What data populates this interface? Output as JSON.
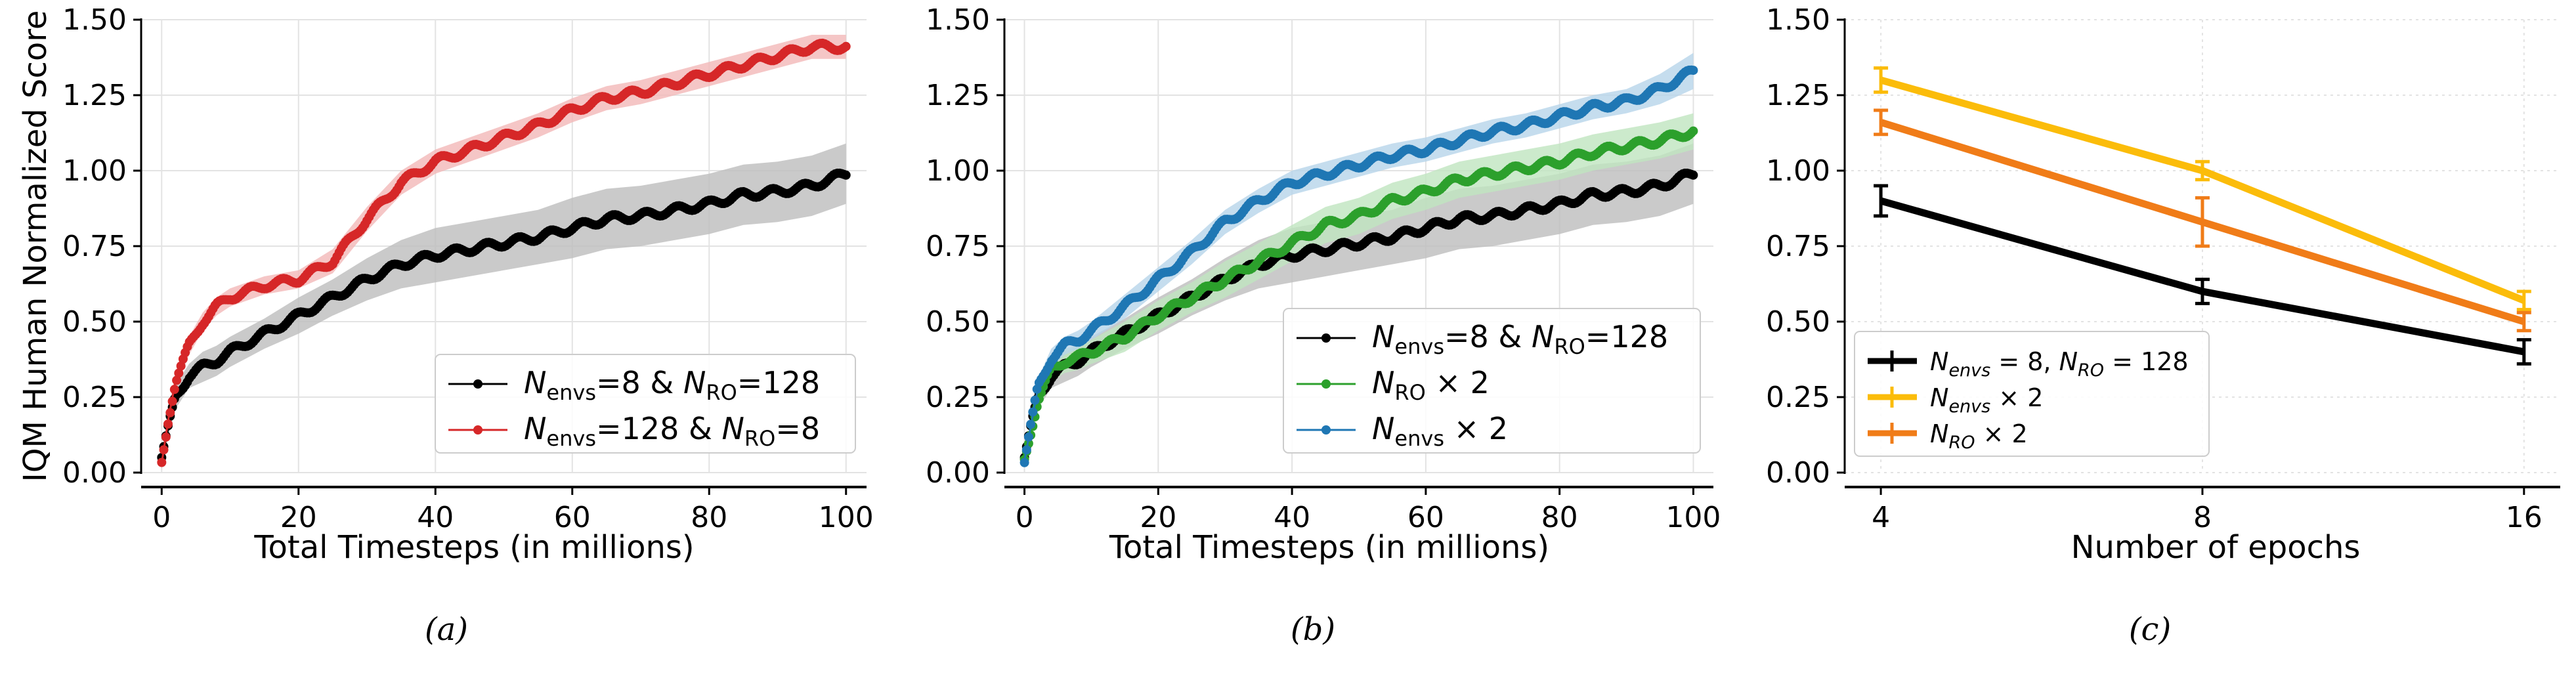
{
  "y_axis_label": "IQM Human Normalized Score",
  "chart_data": [
    {
      "type": "line",
      "panel": "a",
      "caption": "(a)",
      "xlabel": "Total Timesteps (in millions)",
      "ylabel": "IQM Human Normalized Score",
      "xlim": [
        -3,
        103
      ],
      "ylim": [
        0,
        1.5
      ],
      "xticks": [
        0,
        20,
        40,
        60,
        80,
        100
      ],
      "xtick_labels": [
        "0",
        "20",
        "40",
        "60",
        "80",
        "100"
      ],
      "yticks": [
        0,
        0.25,
        0.5,
        0.75,
        1.0,
        1.25,
        1.5
      ],
      "ytick_labels": [
        "0.00",
        "0.25",
        "0.50",
        "0.75",
        "1.00",
        "1.25",
        "1.50"
      ],
      "grid": true,
      "legend_position": "lower-right",
      "series": [
        {
          "name": "black",
          "label_parts": {
            "n1": "N",
            "s1": "envs",
            "e1": "=8 & ",
            "n2": "N",
            "s2": "RO",
            "e2": "=128"
          },
          "color": "#000000",
          "band_color": "#bdbdbd",
          "x": [
            0,
            1,
            2,
            4,
            6,
            8,
            10,
            15,
            20,
            25,
            30,
            35,
            40,
            45,
            50,
            55,
            60,
            65,
            70,
            75,
            80,
            85,
            90,
            95,
            100
          ],
          "y": [
            0.05,
            0.15,
            0.25,
            0.32,
            0.35,
            0.37,
            0.4,
            0.46,
            0.52,
            0.58,
            0.64,
            0.69,
            0.72,
            0.74,
            0.76,
            0.78,
            0.81,
            0.84,
            0.85,
            0.87,
            0.89,
            0.92,
            0.93,
            0.95,
            0.99
          ],
          "band": [
            0.02,
            0.03,
            0.04,
            0.04,
            0.05,
            0.05,
            0.05,
            0.05,
            0.06,
            0.06,
            0.07,
            0.08,
            0.09,
            0.09,
            0.09,
            0.09,
            0.1,
            0.1,
            0.1,
            0.1,
            0.1,
            0.1,
            0.1,
            0.1,
            0.1
          ]
        },
        {
          "name": "red",
          "label_parts": {
            "n1": "N",
            "s1": "envs",
            "e1": "=128 & ",
            "n2": "N",
            "s2": "RO",
            "e2": "=8"
          },
          "color": "#d62728",
          "band_color": "#f2b8b8",
          "x": [
            0,
            1,
            2,
            4,
            6,
            8,
            10,
            15,
            20,
            25,
            30,
            35,
            40,
            45,
            50,
            55,
            60,
            65,
            70,
            75,
            80,
            85,
            90,
            95,
            100
          ],
          "y": [
            0.03,
            0.18,
            0.3,
            0.42,
            0.5,
            0.55,
            0.58,
            0.62,
            0.64,
            0.7,
            0.84,
            0.96,
            1.03,
            1.07,
            1.11,
            1.15,
            1.2,
            1.24,
            1.26,
            1.29,
            1.32,
            1.35,
            1.38,
            1.41,
            1.41
          ],
          "band": [
            0.02,
            0.03,
            0.03,
            0.03,
            0.03,
            0.03,
            0.03,
            0.03,
            0.03,
            0.04,
            0.04,
            0.04,
            0.04,
            0.04,
            0.04,
            0.04,
            0.04,
            0.04,
            0.04,
            0.04,
            0.04,
            0.04,
            0.04,
            0.04,
            0.04
          ]
        }
      ]
    },
    {
      "type": "line",
      "panel": "b",
      "caption": "(b)",
      "xlabel": "Total Timesteps (in millions)",
      "xlim": [
        -3,
        103
      ],
      "ylim": [
        0,
        1.5
      ],
      "xticks": [
        0,
        20,
        40,
        60,
        80,
        100
      ],
      "xtick_labels": [
        "0",
        "20",
        "40",
        "60",
        "80",
        "100"
      ],
      "yticks": [
        0,
        0.25,
        0.5,
        0.75,
        1.0,
        1.25,
        1.5
      ],
      "ytick_labels": [
        "0.00",
        "0.25",
        "0.50",
        "0.75",
        "1.00",
        "1.25",
        "1.50"
      ],
      "grid": true,
      "legend_position": "lower-right",
      "series": [
        {
          "name": "black",
          "label_parts": {
            "n1": "N",
            "s1": "envs",
            "e1": "=8 & ",
            "n2": "N",
            "s2": "RO",
            "e2": "=128"
          },
          "color": "#000000",
          "band_color": "#bdbdbd",
          "x": [
            0,
            1,
            2,
            4,
            6,
            8,
            10,
            15,
            20,
            25,
            30,
            35,
            40,
            45,
            50,
            55,
            60,
            65,
            70,
            75,
            80,
            85,
            90,
            95,
            100
          ],
          "y": [
            0.05,
            0.15,
            0.25,
            0.32,
            0.35,
            0.37,
            0.4,
            0.46,
            0.52,
            0.58,
            0.64,
            0.69,
            0.72,
            0.74,
            0.76,
            0.78,
            0.81,
            0.84,
            0.85,
            0.87,
            0.89,
            0.92,
            0.93,
            0.95,
            0.99
          ],
          "band": [
            0.02,
            0.03,
            0.04,
            0.04,
            0.05,
            0.05,
            0.05,
            0.05,
            0.06,
            0.06,
            0.07,
            0.08,
            0.09,
            0.09,
            0.09,
            0.09,
            0.1,
            0.1,
            0.1,
            0.1,
            0.1,
            0.1,
            0.1,
            0.1,
            0.1
          ]
        },
        {
          "name": "green",
          "label_parts": {
            "n1": "N",
            "s1": "RO",
            "e1": " × 2"
          },
          "color": "#2ca02c",
          "band_color": "#bfe5bf",
          "x": [
            0,
            1,
            2,
            4,
            6,
            8,
            10,
            15,
            20,
            25,
            30,
            35,
            40,
            45,
            50,
            55,
            60,
            65,
            70,
            75,
            80,
            85,
            90,
            95,
            100
          ],
          "y": [
            0.04,
            0.14,
            0.24,
            0.34,
            0.37,
            0.38,
            0.4,
            0.45,
            0.52,
            0.58,
            0.64,
            0.7,
            0.76,
            0.82,
            0.85,
            0.9,
            0.93,
            0.97,
            0.99,
            1.01,
            1.03,
            1.06,
            1.08,
            1.1,
            1.13
          ],
          "band": [
            0.02,
            0.03,
            0.04,
            0.04,
            0.04,
            0.04,
            0.04,
            0.05,
            0.05,
            0.05,
            0.06,
            0.06,
            0.06,
            0.06,
            0.06,
            0.06,
            0.06,
            0.06,
            0.06,
            0.06,
            0.06,
            0.06,
            0.06,
            0.06,
            0.06
          ]
        },
        {
          "name": "blue",
          "label_parts": {
            "n1": "N",
            "s1": "envs",
            "e1": " × 2"
          },
          "color": "#1f77b4",
          "band_color": "#b7d4ea",
          "x": [
            0,
            1,
            2,
            4,
            6,
            8,
            10,
            15,
            20,
            25,
            30,
            35,
            40,
            45,
            50,
            55,
            60,
            65,
            70,
            75,
            80,
            85,
            90,
            95,
            100
          ],
          "y": [
            0.04,
            0.16,
            0.28,
            0.38,
            0.42,
            0.44,
            0.47,
            0.55,
            0.64,
            0.73,
            0.83,
            0.9,
            0.96,
            0.99,
            1.02,
            1.05,
            1.07,
            1.1,
            1.13,
            1.15,
            1.18,
            1.21,
            1.23,
            1.27,
            1.33
          ],
          "band": [
            0.02,
            0.03,
            0.03,
            0.03,
            0.03,
            0.03,
            0.03,
            0.04,
            0.04,
            0.04,
            0.04,
            0.04,
            0.04,
            0.04,
            0.04,
            0.04,
            0.04,
            0.04,
            0.04,
            0.04,
            0.04,
            0.04,
            0.04,
            0.05,
            0.06
          ]
        }
      ]
    },
    {
      "type": "line",
      "panel": "c",
      "caption": "(c)",
      "xlabel": "Number of epochs",
      "x_scale": "log2",
      "xlim": [
        3.7,
        17.3
      ],
      "ylim": [
        0,
        1.5
      ],
      "xticks": [
        4,
        8,
        16
      ],
      "xtick_labels": [
        "4",
        "8",
        "16"
      ],
      "yticks": [
        0,
        0.25,
        0.5,
        0.75,
        1.0,
        1.25,
        1.5
      ],
      "ytick_labels": [
        "0.00",
        "0.25",
        "0.50",
        "0.75",
        "1.00",
        "1.25",
        "1.50"
      ],
      "grid": true,
      "legend_position": "lower-left",
      "series": [
        {
          "name": "black",
          "label_parts": {
            "n1": "N",
            "s1": "envs",
            "e1": " = 8, ",
            "n2": "N",
            "s2": "RO",
            "e2": " = 128"
          },
          "color": "#000000",
          "x": [
            4,
            8,
            16
          ],
          "y": [
            0.9,
            0.6,
            0.4
          ],
          "err": [
            0.05,
            0.04,
            0.04
          ]
        },
        {
          "name": "yellow",
          "label_parts": {
            "n1": "N",
            "s1": "envs",
            "e1": " × 2"
          },
          "color": "#fbbc0a",
          "x": [
            4,
            8,
            16
          ],
          "y": [
            1.3,
            1.0,
            0.57
          ],
          "err": [
            0.04,
            0.03,
            0.03
          ]
        },
        {
          "name": "orange",
          "label_parts": {
            "n1": "N",
            "s1": "RO",
            "e1": " × 2"
          },
          "color": "#f07c18",
          "x": [
            4,
            8,
            16
          ],
          "y": [
            1.16,
            0.83,
            0.5
          ],
          "err": [
            0.04,
            0.08,
            0.03
          ]
        }
      ]
    }
  ]
}
